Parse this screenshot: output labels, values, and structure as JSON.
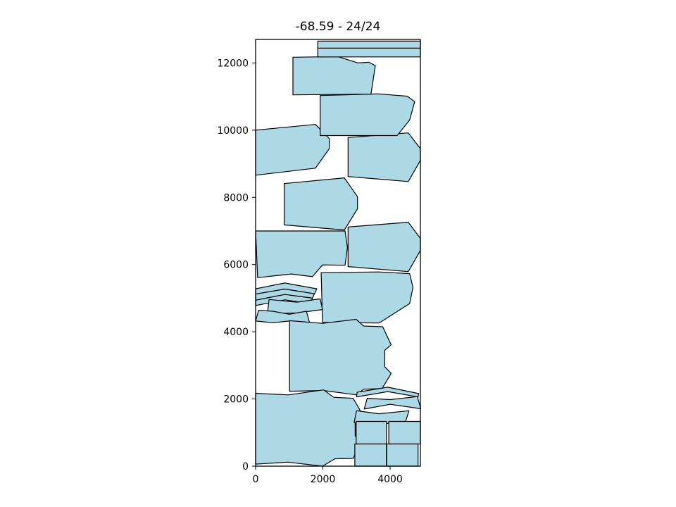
{
  "chart_data": {
    "type": "polygon-layout",
    "title": "-68.59 - 24/24",
    "xlabel": "",
    "ylabel": "",
    "xlim": [
      0,
      4900
    ],
    "ylim": [
      0,
      12700
    ],
    "xticks": [
      0,
      2000,
      4000
    ],
    "yticks": [
      0,
      2000,
      4000,
      6000,
      8000,
      10000,
      12000
    ],
    "xtick_labels": [
      "0",
      "2000",
      "4000"
    ],
    "ytick_labels": [
      "0",
      "2000",
      "4000",
      "6000",
      "8000",
      "10000",
      "12000"
    ],
    "grid": false,
    "legend": "none",
    "fill_color": "#add8e6",
    "edge_color": "#000000",
    "polygons": [
      [
        [
          0,
          10000
        ],
        [
          1780,
          10170
        ],
        [
          2190,
          9750
        ],
        [
          2190,
          9450
        ],
        [
          1780,
          8870
        ],
        [
          0,
          8660
        ]
      ],
      [
        [
          2750,
          9780
        ],
        [
          4540,
          9920
        ],
        [
          4900,
          9450
        ],
        [
          4900,
          9100
        ],
        [
          4540,
          8470
        ],
        [
          2750,
          8620
        ]
      ],
      [
        [
          1920,
          11030
        ],
        [
          3650,
          11080
        ],
        [
          4510,
          11010
        ],
        [
          4730,
          10850
        ],
        [
          4580,
          10300
        ],
        [
          4210,
          9840
        ],
        [
          1920,
          9840
        ]
      ],
      [
        [
          1110,
          12170
        ],
        [
          2440,
          12190
        ],
        [
          3050,
          12000
        ],
        [
          3370,
          12020
        ],
        [
          3560,
          11920
        ],
        [
          3430,
          11070
        ],
        [
          3050,
          11070
        ],
        [
          1110,
          11050
        ]
      ],
      [
        [
          1850,
          12650
        ],
        [
          4900,
          12650
        ],
        [
          4900,
          12180
        ],
        [
          1850,
          12180
        ]
      ],
      [
        [
          1850,
          12440
        ],
        [
          4900,
          12440
        ]
      ],
      [
        [
          850,
          8410
        ],
        [
          2640,
          8580
        ],
        [
          3030,
          8020
        ],
        [
          3030,
          7660
        ],
        [
          2640,
          7030
        ],
        [
          850,
          7180
        ]
      ],
      [
        [
          0,
          7000
        ],
        [
          2660,
          7000
        ],
        [
          2730,
          6510
        ],
        [
          2660,
          5980
        ],
        [
          1990,
          5990
        ],
        [
          1690,
          5640
        ],
        [
          1060,
          5720
        ],
        [
          60,
          5610
        ]
      ],
      [
        [
          2750,
          7120
        ],
        [
          4540,
          7260
        ],
        [
          4900,
          6780
        ],
        [
          4900,
          6420
        ],
        [
          4540,
          5790
        ],
        [
          2750,
          5940
        ]
      ],
      [
        [
          1950,
          5760
        ],
        [
          3670,
          5780
        ],
        [
          4580,
          5730
        ],
        [
          4680,
          5320
        ],
        [
          4580,
          4840
        ],
        [
          3670,
          4260
        ],
        [
          1990,
          4280
        ]
      ],
      [
        [
          0,
          5280
        ],
        [
          870,
          5450
        ],
        [
          1820,
          5280
        ],
        [
          1750,
          5130
        ],
        [
          870,
          5270
        ],
        [
          0,
          5120
        ]
      ],
      [
        [
          0,
          5120
        ],
        [
          870,
          5270
        ],
        [
          1750,
          5130
        ],
        [
          1690,
          5000
        ],
        [
          870,
          5110
        ],
        [
          0,
          4940
        ]
      ],
      [
        [
          0,
          4940
        ],
        [
          870,
          5110
        ],
        [
          1690,
          5000
        ],
        [
          1620,
          4840
        ],
        [
          870,
          4950
        ],
        [
          0,
          4780
        ]
      ],
      [
        [
          400,
          4960
        ],
        [
          1230,
          4880
        ],
        [
          1920,
          4980
        ],
        [
          1990,
          4660
        ],
        [
          1230,
          4560
        ],
        [
          350,
          4530
        ]
      ],
      [
        [
          0,
          4320
        ],
        [
          510,
          4270
        ],
        [
          1000,
          4320
        ],
        [
          1610,
          4250
        ],
        [
          1510,
          4610
        ],
        [
          1000,
          4520
        ],
        [
          510,
          4610
        ],
        [
          90,
          4640
        ]
      ],
      [
        [
          1010,
          4330
        ],
        [
          1990,
          4250
        ],
        [
          2990,
          4370
        ],
        [
          3210,
          4170
        ],
        [
          3780,
          4150
        ],
        [
          4030,
          3610
        ],
        [
          3840,
          3450
        ],
        [
          3840,
          2960
        ],
        [
          4030,
          2760
        ],
        [
          3760,
          2310
        ],
        [
          3210,
          2290
        ],
        [
          3010,
          2120
        ],
        [
          2020,
          2250
        ],
        [
          1010,
          2230
        ]
      ],
      [
        [
          0,
          2170
        ],
        [
          970,
          2120
        ],
        [
          2020,
          2270
        ],
        [
          2320,
          2050
        ],
        [
          2900,
          2020
        ],
        [
          3140,
          1600
        ],
        [
          2960,
          1440
        ],
        [
          2960,
          900
        ],
        [
          3140,
          740
        ],
        [
          2900,
          230
        ],
        [
          2360,
          220
        ],
        [
          1990,
          0
        ],
        [
          960,
          120
        ],
        [
          0,
          60
        ]
      ],
      [
        [
          3020,
          2200
        ],
        [
          3930,
          2350
        ],
        [
          4850,
          2160
        ],
        [
          4830,
          2060
        ],
        [
          3930,
          2220
        ],
        [
          3000,
          2060
        ]
      ],
      [
        [
          3320,
          2020
        ],
        [
          4000,
          1980
        ],
        [
          4810,
          2070
        ],
        [
          4910,
          1710
        ],
        [
          4000,
          1840
        ],
        [
          3230,
          1700
        ]
      ],
      [
        [
          3000,
          1650
        ],
        [
          3670,
          1560
        ],
        [
          4560,
          1650
        ],
        [
          4460,
          1330
        ],
        [
          3660,
          1240
        ],
        [
          2930,
          1290
        ]
      ],
      [
        [
          2990,
          1330
        ],
        [
          3890,
          1330
        ],
        [
          3890,
          660
        ],
        [
          2990,
          660
        ]
      ],
      [
        [
          3960,
          1330
        ],
        [
          4900,
          1330
        ],
        [
          4900,
          660
        ],
        [
          3960,
          660
        ]
      ],
      [
        [
          2950,
          660
        ],
        [
          3890,
          660
        ],
        [
          3890,
          0
        ],
        [
          2950,
          0
        ]
      ],
      [
        [
          3900,
          660
        ],
        [
          4830,
          660
        ],
        [
          4830,
          0
        ],
        [
          3900,
          0
        ]
      ]
    ]
  }
}
